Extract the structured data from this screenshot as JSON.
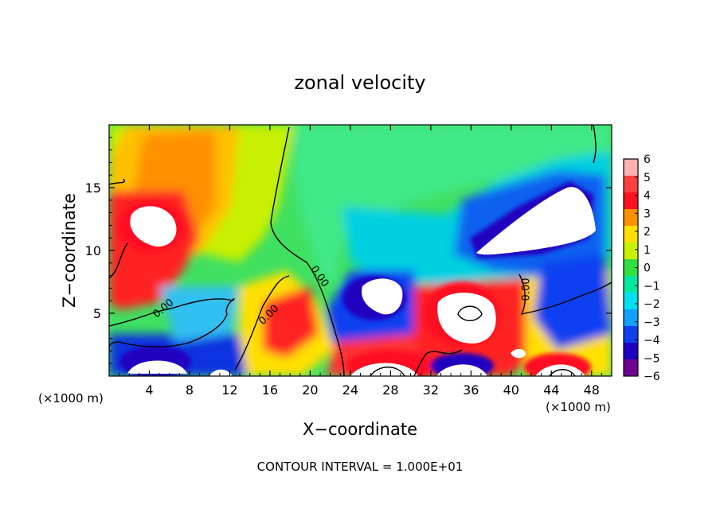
{
  "chart_data": {
    "type": "heatmap",
    "title": "zonal velocity",
    "xlabel": "X−coordinate",
    "ylabel": "Z−coordinate",
    "x_unit_left": "(×1000 m)",
    "x_unit_right": "(×1000 m)",
    "footer": "CONTOUR INTERVAL = 1.000E+01",
    "xlim": [
      0,
      50
    ],
    "ylim": [
      0,
      20
    ],
    "x_ticks": [
      4,
      8,
      12,
      16,
      20,
      24,
      28,
      32,
      36,
      40,
      44,
      48
    ],
    "x_tick_labels": [
      "4",
      "8",
      "12",
      "16",
      "20",
      "24",
      "28",
      "32",
      "36",
      "40",
      "44",
      "48"
    ],
    "y_ticks": [
      5,
      10,
      15
    ],
    "y_tick_labels": [
      "5",
      "10",
      "15"
    ],
    "grid": false,
    "colorbar": {
      "range": [
        -6,
        6
      ],
      "tick_values": [
        6,
        5,
        4,
        3,
        2,
        1,
        0,
        -1,
        -2,
        -3,
        -4,
        -5,
        -6
      ],
      "tick_labels": [
        "6",
        "5",
        "4",
        "3",
        "2",
        "1",
        "0",
        "−1",
        "−2",
        "−3",
        "−4",
        "−5",
        "−6"
      ],
      "colors": [
        "#ffb0b0",
        "#ff4040",
        "#ff1020",
        "#ff9000",
        "#ffe000",
        "#c8f000",
        "#30e040",
        "#00e8a0",
        "#00e0f0",
        "#10a0ff",
        "#1040f0",
        "#2000c0",
        "#700090"
      ]
    },
    "contour_labels": [
      {
        "text": "0.00",
        "x": 5.6,
        "y": 5.2,
        "angle": -40
      },
      {
        "text": "0.00",
        "x": 16.1,
        "y": 4.7,
        "angle": -45
      },
      {
        "text": "0.00",
        "x": 20.7,
        "y": 7.8,
        "angle": 55
      },
      {
        "text": "0.00",
        "x": 41.8,
        "y": 6.9,
        "angle": -90
      }
    ]
  }
}
